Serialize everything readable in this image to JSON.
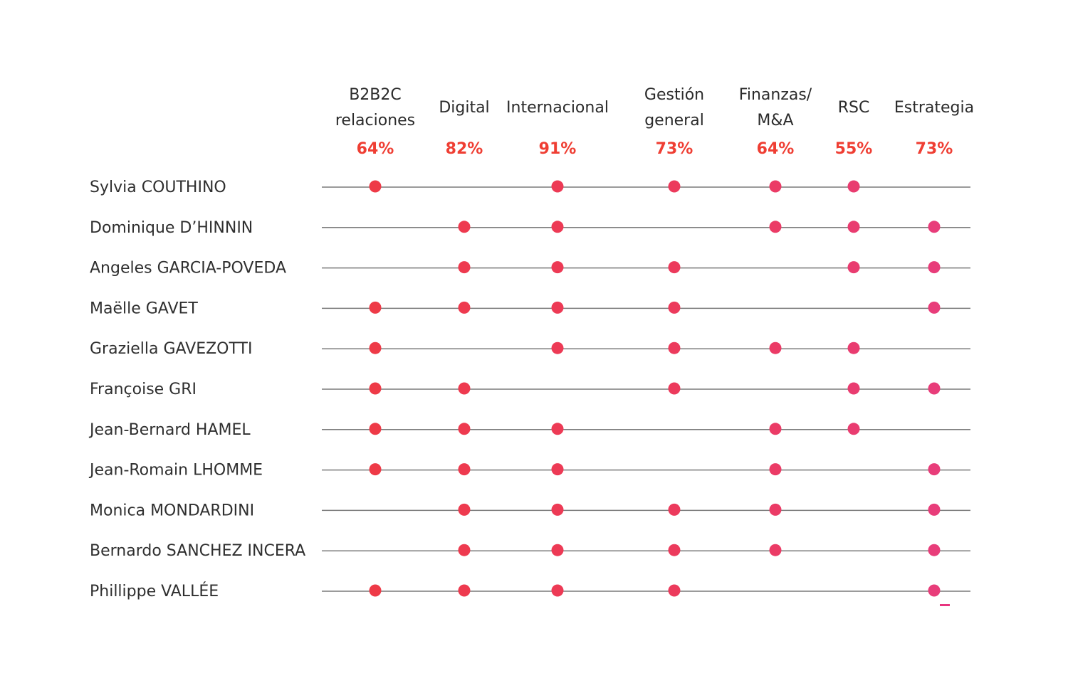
{
  "chart_data": {
    "type": "table",
    "categories": [
      {
        "lines": [
          "B2B2C",
          "relaciones"
        ],
        "percent": "64%"
      },
      {
        "lines": [
          "Digital"
        ],
        "percent": "82%"
      },
      {
        "lines": [
          "Internacional"
        ],
        "percent": "91%"
      },
      {
        "lines": [
          "Gestión",
          "general"
        ],
        "percent": "73%"
      },
      {
        "lines": [
          "Finanzas/",
          "M&A"
        ],
        "percent": "64%"
      },
      {
        "lines": [
          "RSC"
        ],
        "percent": "55%"
      },
      {
        "lines": [
          "Estrategia"
        ],
        "percent": "73%"
      }
    ],
    "members": [
      {
        "name": "Sylvia COUTHINO",
        "skills": [
          1,
          0,
          1,
          1,
          1,
          1,
          0
        ]
      },
      {
        "name": "Dominique D’HINNIN",
        "skills": [
          0,
          1,
          1,
          0,
          1,
          1,
          1
        ]
      },
      {
        "name": "Angeles GARCIA-POVEDA",
        "skills": [
          0,
          1,
          1,
          1,
          0,
          1,
          1
        ]
      },
      {
        "name": "Maëlle GAVET",
        "skills": [
          1,
          1,
          1,
          1,
          0,
          0,
          1
        ]
      },
      {
        "name": "Graziella GAVEZOTTI",
        "skills": [
          1,
          0,
          1,
          1,
          1,
          1,
          0
        ]
      },
      {
        "name": "Françoise GRI",
        "skills": [
          1,
          1,
          0,
          1,
          0,
          1,
          1
        ]
      },
      {
        "name": "Jean-Bernard HAMEL",
        "skills": [
          1,
          1,
          1,
          0,
          1,
          1,
          0
        ]
      },
      {
        "name": "Jean-Romain LHOMME",
        "skills": [
          1,
          1,
          1,
          0,
          1,
          0,
          1
        ]
      },
      {
        "name": "Monica MONDARDINI",
        "skills": [
          0,
          1,
          1,
          1,
          1,
          0,
          1
        ]
      },
      {
        "name": "Bernardo SANCHEZ INCERA",
        "skills": [
          0,
          1,
          1,
          1,
          1,
          0,
          1
        ]
      },
      {
        "name": "Phillippe VALLÉE",
        "skills": [
          1,
          1,
          1,
          1,
          0,
          0,
          1
        ]
      }
    ],
    "dot_colors": [
      "#ee3a47",
      "#ee3a4f",
      "#ed3a55",
      "#ec3a5c",
      "#eb3b66",
      "#e93c70",
      "#e83d7a"
    ],
    "percent_color": "#ef3e33",
    "line_color": "#7a7a7a"
  }
}
